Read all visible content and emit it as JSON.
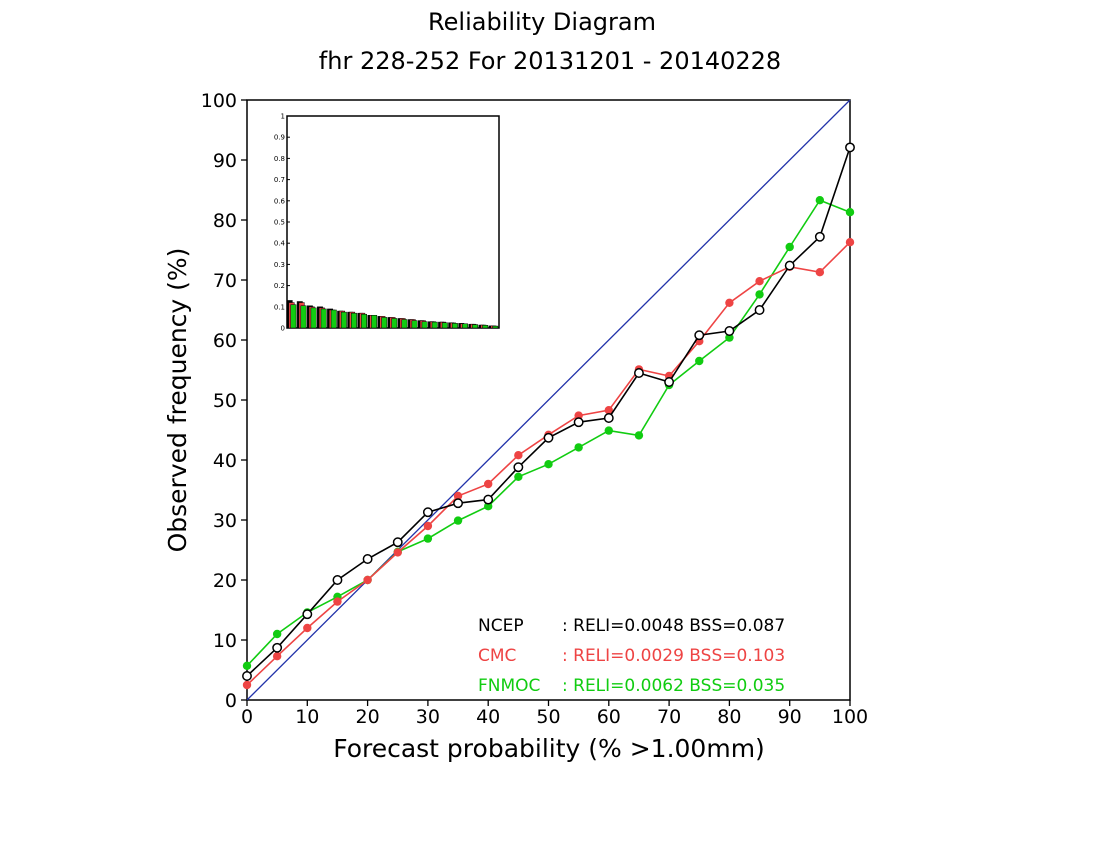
{
  "chart_data": {
    "type": "line",
    "title": "Reliability Diagram",
    "subtitle": "fhr 228-252 For 20131201 - 20140228",
    "xlabel": "Forecast probability (% >1.00mm)",
    "ylabel": "Observed frequency (%)",
    "xlim": [
      0,
      100
    ],
    "ylim": [
      0,
      100
    ],
    "xticks": [
      "0",
      "10",
      "20",
      "30",
      "40",
      "50",
      "60",
      "70",
      "80",
      "90",
      "100"
    ],
    "yticks": [
      "0",
      "10",
      "20",
      "30",
      "40",
      "50",
      "60",
      "70",
      "80",
      "90",
      "100"
    ],
    "diagonal_color": "#2233aa",
    "series": [
      {
        "name": "NCEP",
        "color": "#000000",
        "marker": "open-circle",
        "stats": ": RELI=0.0048  BSS=0.087",
        "x": [
          0,
          5,
          10,
          15,
          20,
          25,
          30,
          35,
          40,
          45,
          50,
          55,
          60,
          65,
          70,
          75,
          80,
          85,
          90,
          95,
          100
        ],
        "y": [
          4,
          8.7,
          14.3,
          20,
          23.5,
          26.3,
          31.3,
          32.8,
          33.4,
          38.8,
          43.7,
          46.3,
          47,
          54.5,
          53,
          60.8,
          61.5,
          65,
          72.4,
          77.2,
          92.1
        ]
      },
      {
        "name": "CMC",
        "color": "#ee4444",
        "marker": "filled-circle",
        "stats": ": RELI=0.0029  BSS=0.103",
        "x": [
          0,
          5,
          10,
          15,
          20,
          25,
          30,
          35,
          40,
          45,
          50,
          55,
          60,
          65,
          70,
          75,
          80,
          85,
          90,
          95,
          100
        ],
        "y": [
          2.5,
          7.3,
          12,
          16.4,
          20,
          24.6,
          29,
          34,
          36,
          40.8,
          44.2,
          47.4,
          48.3,
          55.1,
          54,
          59.8,
          66.2,
          69.8,
          72.2,
          71.3,
          76.3
        ]
      },
      {
        "name": "FNMOC",
        "color": "#11cc11",
        "marker": "filled-circle",
        "stats": ": RELI=0.0062  BSS=0.035",
        "x": [
          0,
          5,
          10,
          15,
          20,
          25,
          30,
          35,
          40,
          45,
          50,
          55,
          60,
          65,
          70,
          75,
          80,
          85,
          90,
          95,
          100
        ],
        "y": [
          5.7,
          11,
          14.6,
          17.2,
          20,
          24.7,
          26.9,
          29.9,
          32.3,
          37.2,
          39.3,
          42.1,
          44.9,
          44.1,
          52.5,
          56.5,
          60.4,
          67.6,
          75.5,
          83.3,
          81.3
        ]
      }
    ],
    "inset": {
      "type": "bar",
      "ylim": [
        0,
        1
      ],
      "yticks": [
        "0",
        "0.1",
        "0.2",
        "0.3",
        "0.4",
        "0.5",
        "0.6",
        "0.7",
        "0.8",
        "0.9",
        "1"
      ],
      "groups": [
        {
          "values": [
            0.13,
            0.12,
            0.11
          ]
        },
        {
          "values": [
            0.125,
            0.12,
            0.105
          ]
        },
        {
          "values": [
            0.105,
            0.1,
            0.095
          ]
        },
        {
          "values": [
            0.1,
            0.095,
            0.09
          ]
        },
        {
          "values": [
            0.09,
            0.085,
            0.085
          ]
        },
        {
          "values": [
            0.08,
            0.08,
            0.075
          ]
        },
        {
          "values": [
            0.075,
            0.075,
            0.07
          ]
        },
        {
          "values": [
            0.07,
            0.07,
            0.065
          ]
        },
        {
          "values": [
            0.06,
            0.06,
            0.06
          ]
        },
        {
          "values": [
            0.055,
            0.055,
            0.05
          ]
        },
        {
          "values": [
            0.05,
            0.05,
            0.045
          ]
        },
        {
          "values": [
            0.045,
            0.045,
            0.04
          ]
        },
        {
          "values": [
            0.04,
            0.04,
            0.035
          ]
        },
        {
          "values": [
            0.035,
            0.035,
            0.03
          ]
        },
        {
          "values": [
            0.03,
            0.03,
            0.028
          ]
        },
        {
          "values": [
            0.028,
            0.028,
            0.025
          ]
        },
        {
          "values": [
            0.025,
            0.024,
            0.022
          ]
        },
        {
          "values": [
            0.022,
            0.02,
            0.02
          ]
        },
        {
          "values": [
            0.018,
            0.018,
            0.016
          ]
        },
        {
          "values": [
            0.014,
            0.014,
            0.013
          ]
        },
        {
          "values": [
            0.01,
            0.01,
            0.009
          ]
        }
      ]
    }
  }
}
